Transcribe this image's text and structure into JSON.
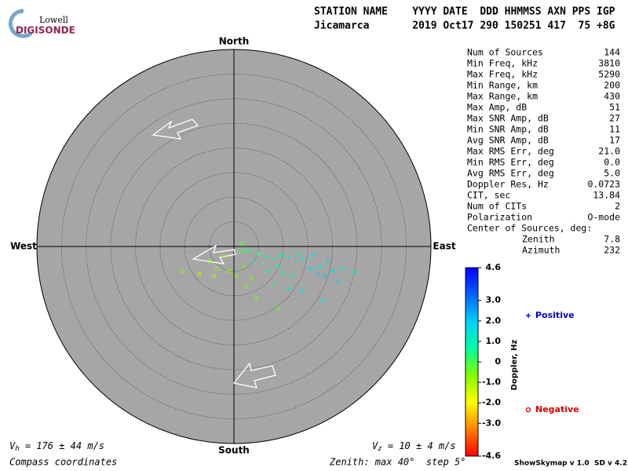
{
  "logo": {
    "top": "Lowell",
    "bottom": "DIGISONDE"
  },
  "header": {
    "labels": "STATION NAME    YYYY DATE  DDD HHMMSS AXN PPS IGP",
    "values": "Jicamarca       2019 Oct17 290 150251 417  75 +8G"
  },
  "stats": [
    [
      "Num of Sources",
      "144"
    ],
    [
      "Min Freq, kHz",
      "3810"
    ],
    [
      "Max Freq, kHz",
      "5290"
    ],
    [
      "Min Range, km",
      "200"
    ],
    [
      "Max Range, km",
      "430"
    ],
    [
      "Max Amp, dB",
      "51"
    ],
    [
      "Max SNR Amp, dB",
      "27"
    ],
    [
      "Min SNR Amp, dB",
      "11"
    ],
    [
      "Avg SNR Amp, dB",
      "17"
    ],
    [
      "Max RMS Err, deg",
      "21.0"
    ],
    [
      "Min RMS Err, deg",
      "0.0"
    ],
    [
      "Avg RMS Err, deg",
      "5.0"
    ],
    [
      "Doppler Res, Hz",
      "0.0723"
    ],
    [
      "CIT, sec",
      "13.84"
    ],
    [
      "Num of CITs",
      "2"
    ],
    [
      "Polarization",
      "O-mode"
    ]
  ],
  "center": {
    "label": "Center of Sources, deg:",
    "rows": [
      [
        "Zenith",
        "7.8"
      ],
      [
        "Azimuth",
        "232"
      ]
    ]
  },
  "chart_data": {
    "type": "skymap",
    "directions": {
      "north": "North",
      "south": "South",
      "west": "West",
      "east": "East"
    },
    "rlim": [
      0,
      40
    ],
    "rings": [
      5,
      10,
      15,
      20,
      25,
      30,
      35
    ],
    "series": [
      {
        "name": "Positive",
        "color": "#0000cc",
        "marker": "+",
        "x": [
          5.0,
          6.5,
          8.0,
          9.5,
          11,
          12.5,
          14,
          15.5,
          17,
          18.5,
          20,
          22,
          24.5,
          11,
          14,
          18,
          12,
          7.0,
          9.0,
          3.0,
          4.0,
          16,
          13,
          10,
          6,
          19,
          21,
          8,
          2,
          17.5
        ],
        "y": [
          -1.5,
          -2.0,
          -2.5,
          -1.8,
          -2.2,
          -3.0,
          -2.5,
          -4.5,
          -5.5,
          -6.0,
          -5.0,
          -4.5,
          -5.2,
          -8.5,
          -9.0,
          -11.0,
          -6.0,
          -5.0,
          -4.0,
          -0.8,
          -3.0,
          -1.8,
          -1.5,
          -5.5,
          -3.5,
          -3.0,
          -7.0,
          -7.5,
          -1,
          -4
        ],
        "values": [
          0.3,
          0.5,
          0.8,
          1.0,
          1.2,
          1.3,
          1.5,
          1.8,
          2.0,
          2.1,
          1.6,
          1.2,
          1.4,
          1.6,
          1.8,
          1.4,
          1.1,
          0.6,
          0.7,
          0.4,
          0.5,
          1.5,
          1.0,
          0.9,
          0.4,
          1.7,
          1.9,
          0.3,
          0.2,
          1.3
        ]
      },
      {
        "name": "Negative",
        "color": "#dd0000",
        "marker": "o",
        "x": [
          -10.5,
          -7,
          -5,
          -2,
          -1,
          0.5,
          2,
          3.5,
          1,
          -3.5,
          4.5,
          2.5,
          -4,
          1.5,
          9
        ],
        "y": [
          -5,
          -5.5,
          -3,
          -2,
          -5,
          -6,
          -4,
          -6.5,
          -1,
          -4.5,
          -10.5,
          -8,
          -6,
          0.5,
          -12.5
        ],
        "values": [
          -0.8,
          -1.2,
          -0.6,
          -0.4,
          -0.8,
          -0.5,
          -0.3,
          -0.6,
          -0.2,
          -0.9,
          -0.5,
          -0.4,
          -1.0,
          -0.3,
          -0.3
        ]
      }
    ],
    "colorbar": {
      "title": "Doppler, Hz",
      "lim": [
        -4.6,
        4.6
      ],
      "colors": [
        "#ff0000",
        "#ff8000",
        "#ffff00",
        "#80ff00",
        "#00ffa0",
        "#00d0ff",
        "#0060ff",
        "#0000ff"
      ],
      "ticks": [
        4.6,
        {
          "value": 3,
          "label": "3.0"
        },
        {
          "value": 2,
          "label": "2.0"
        },
        {
          "value": 1,
          "label": "1.0"
        },
        0,
        {
          "value": -1,
          "label": "-1.0"
        },
        {
          "value": -2,
          "label": "-2.0"
        },
        {
          "value": -3,
          "label": "-3.0"
        },
        -4.6
      ]
    }
  },
  "footer": {
    "vh": {
      "symbol": "V",
      "sub": "h",
      "text": " = 176 ± 44 m/s"
    },
    "vz": {
      "symbol": "V",
      "sub": "z",
      "text": " = 10 ± 4 m/s"
    },
    "coords": "Compass coordinates",
    "zenith": "Zenith: max 40°  step 5°",
    "version": "ShowSkymap v 1.0  SD v 4.2"
  }
}
